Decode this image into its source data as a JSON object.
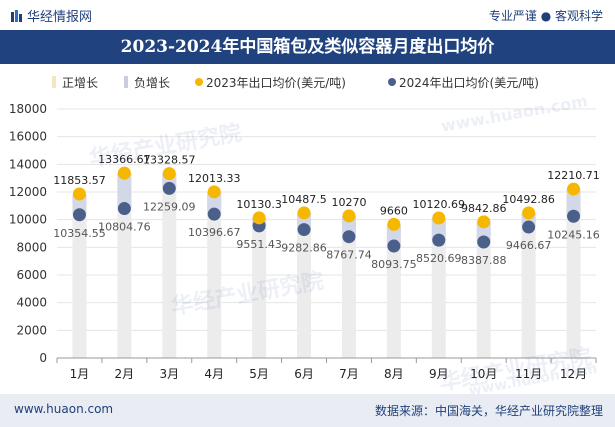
{
  "header": {
    "brand": "华经情报网",
    "slogan": "专业严谨 ● 客观科学"
  },
  "footer": {
    "site": "www.huaon.com",
    "source": "数据来源：中国海关，华经产业研究院整理"
  },
  "watermark": {
    "text": "华经产业研究院",
    "url": "www.huaon.com"
  },
  "colors": {
    "title_bg": "#20427f",
    "bar": "#e6e6e6",
    "series_2023": "#f5b700",
    "series_2024": "#4a5f8a",
    "neg_legend": "#c8cde0"
  },
  "chart_data": {
    "type": "line",
    "title": "2023-2024年中国箱包及类似容器月度出口均价",
    "categories": [
      "1月",
      "2月",
      "3月",
      "4月",
      "5月",
      "6月",
      "7月",
      "8月",
      "9月",
      "10月",
      "11月",
      "12月"
    ],
    "legend": [
      "正增长",
      "负增长",
      "2023年出口均价(美元/吨)",
      "2024年出口均价(美元/吨)"
    ],
    "series": [
      {
        "name": "2023年出口均价(美元/吨)",
        "values": [
          11853.57,
          13366.67,
          13328.57,
          12013.33,
          10130.3,
          10487.5,
          10270,
          9660,
          10120.69,
          9842.86,
          10492.86,
          12210.71
        ],
        "labels": [
          "11853.57",
          "13366.67",
          "13328.57",
          "12013.33",
          "10130.3",
          "10487.5",
          "10270",
          "9660",
          "10120.69",
          "9842.86",
          "10492.86",
          "12210.71"
        ]
      },
      {
        "name": "2024年出口均价(美元/吨)",
        "values": [
          10354.55,
          10804.76,
          12259.09,
          10396.67,
          9551.43,
          9282.86,
          8767.74,
          8093.75,
          8520.69,
          8387.88,
          9466.67,
          10245.16
        ],
        "labels": [
          "10354.55",
          "10804.76",
          "12259.09",
          "10396.67",
          "9551.43",
          "9282.86",
          "8767.74",
          "8093.75",
          "8520.69",
          "8387.88",
          "9466.67",
          "10245.16"
        ]
      }
    ],
    "ylim": [
      0,
      18000
    ],
    "yticks": [
      0,
      2000,
      4000,
      6000,
      8000,
      10000,
      12000,
      14000,
      16000,
      18000
    ],
    "ytick_labels": [
      "0",
      "2000",
      "4000",
      "6000",
      "8000",
      "10000",
      "12000",
      "14000",
      "16000",
      "18000"
    ],
    "grid": true,
    "legend_position": "top"
  }
}
